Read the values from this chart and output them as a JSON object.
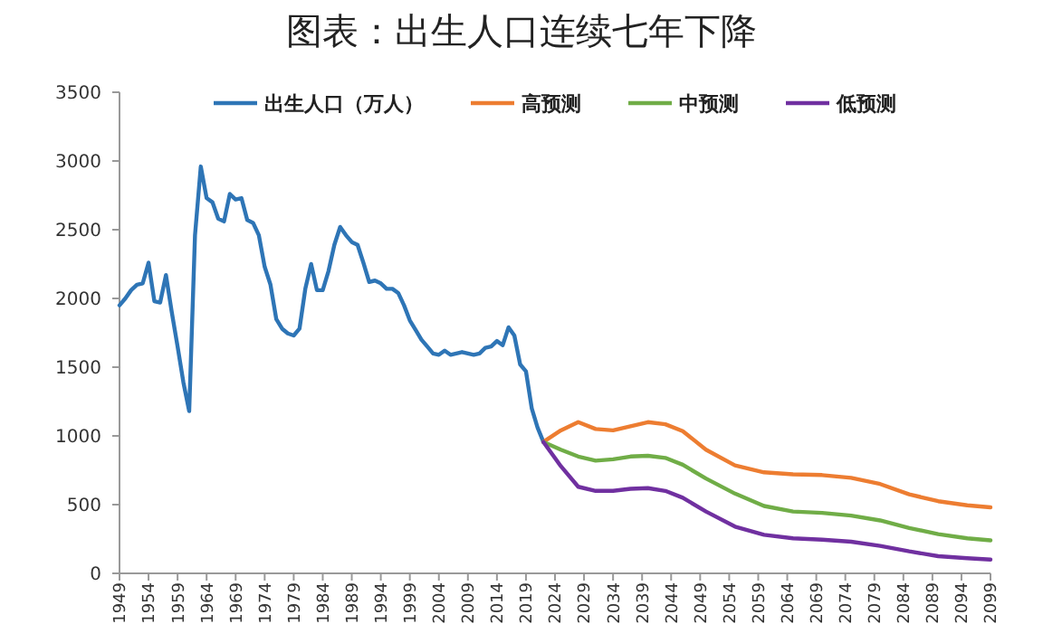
{
  "chart_data": {
    "type": "line",
    "title": "图表：出生人口连续七年下降",
    "series": [
      {
        "name": "出生人口（万人）",
        "color": "#2e75b6",
        "x": [
          1949,
          1950,
          1951,
          1952,
          1953,
          1954,
          1955,
          1956,
          1957,
          1958,
          1959,
          1960,
          1961,
          1962,
          1963,
          1964,
          1965,
          1966,
          1967,
          1968,
          1969,
          1970,
          1971,
          1972,
          1973,
          1974,
          1975,
          1976,
          1977,
          1978,
          1979,
          1980,
          1981,
          1982,
          1983,
          1984,
          1985,
          1986,
          1987,
          1988,
          1989,
          1990,
          1991,
          1992,
          1993,
          1994,
          1995,
          1996,
          1997,
          1998,
          1999,
          2000,
          2001,
          2002,
          2003,
          2004,
          2005,
          2006,
          2007,
          2008,
          2009,
          2010,
          2011,
          2012,
          2013,
          2014,
          2015,
          2016,
          2017,
          2018,
          2019,
          2020,
          2021,
          2022
        ],
        "values": [
          1950,
          2000,
          2060,
          2100,
          2110,
          2260,
          1980,
          1970,
          2170,
          1900,
          1650,
          1390,
          1180,
          2460,
          2960,
          2730,
          2700,
          2580,
          2560,
          2760,
          2720,
          2730,
          2570,
          2550,
          2460,
          2230,
          2100,
          1850,
          1780,
          1745,
          1730,
          1780,
          2070,
          2250,
          2060,
          2060,
          2200,
          2390,
          2520,
          2460,
          2410,
          2390,
          2260,
          2120,
          2130,
          2110,
          2070,
          2070,
          2040,
          1950,
          1840,
          1770,
          1700,
          1650,
          1600,
          1590,
          1620,
          1590,
          1600,
          1610,
          1600,
          1590,
          1600,
          1640,
          1650,
          1690,
          1660,
          1790,
          1730,
          1520,
          1470,
          1200,
          1060,
          956
        ]
      },
      {
        "name": "高预测",
        "color": "#ed7d31",
        "x": [
          2022,
          2025,
          2028,
          2031,
          2034,
          2037,
          2040,
          2043,
          2046,
          2050,
          2055,
          2060,
          2065,
          2070,
          2075,
          2080,
          2085,
          2090,
          2095,
          2099
        ],
        "values": [
          956,
          1040,
          1100,
          1050,
          1040,
          1070,
          1100,
          1085,
          1035,
          900,
          785,
          735,
          720,
          715,
          695,
          650,
          575,
          525,
          495,
          480
        ]
      },
      {
        "name": "中预测",
        "color": "#70ad47",
        "x": [
          2022,
          2025,
          2028,
          2031,
          2034,
          2037,
          2040,
          2043,
          2046,
          2050,
          2055,
          2060,
          2065,
          2070,
          2075,
          2080,
          2085,
          2090,
          2095,
          2099
        ],
        "values": [
          956,
          900,
          850,
          820,
          830,
          850,
          855,
          840,
          790,
          690,
          580,
          490,
          450,
          440,
          420,
          385,
          330,
          285,
          255,
          240
        ]
      },
      {
        "name": "低预测",
        "color": "#7030a0",
        "x": [
          2022,
          2025,
          2028,
          2031,
          2034,
          2037,
          2040,
          2043,
          2046,
          2050,
          2055,
          2060,
          2065,
          2070,
          2075,
          2080,
          2085,
          2090,
          2095,
          2099
        ],
        "values": [
          956,
          780,
          630,
          600,
          600,
          615,
          620,
          600,
          550,
          450,
          340,
          280,
          255,
          245,
          230,
          200,
          160,
          125,
          110,
          100
        ]
      }
    ],
    "xlim": [
      1949,
      2099
    ],
    "xticks": [
      1949,
      1954,
      1959,
      1964,
      1969,
      1974,
      1979,
      1984,
      1989,
      1994,
      1999,
      2004,
      2009,
      2014,
      2019,
      2024,
      2029,
      2034,
      2039,
      2044,
      2049,
      2054,
      2059,
      2064,
      2069,
      2074,
      2079,
      2084,
      2089,
      2094,
      2099
    ],
    "ylim": [
      0,
      3500
    ],
    "yticks": [
      0,
      500,
      1000,
      1500,
      2000,
      2500,
      3000,
      3500
    ],
    "grid": false,
    "legend": "top"
  }
}
